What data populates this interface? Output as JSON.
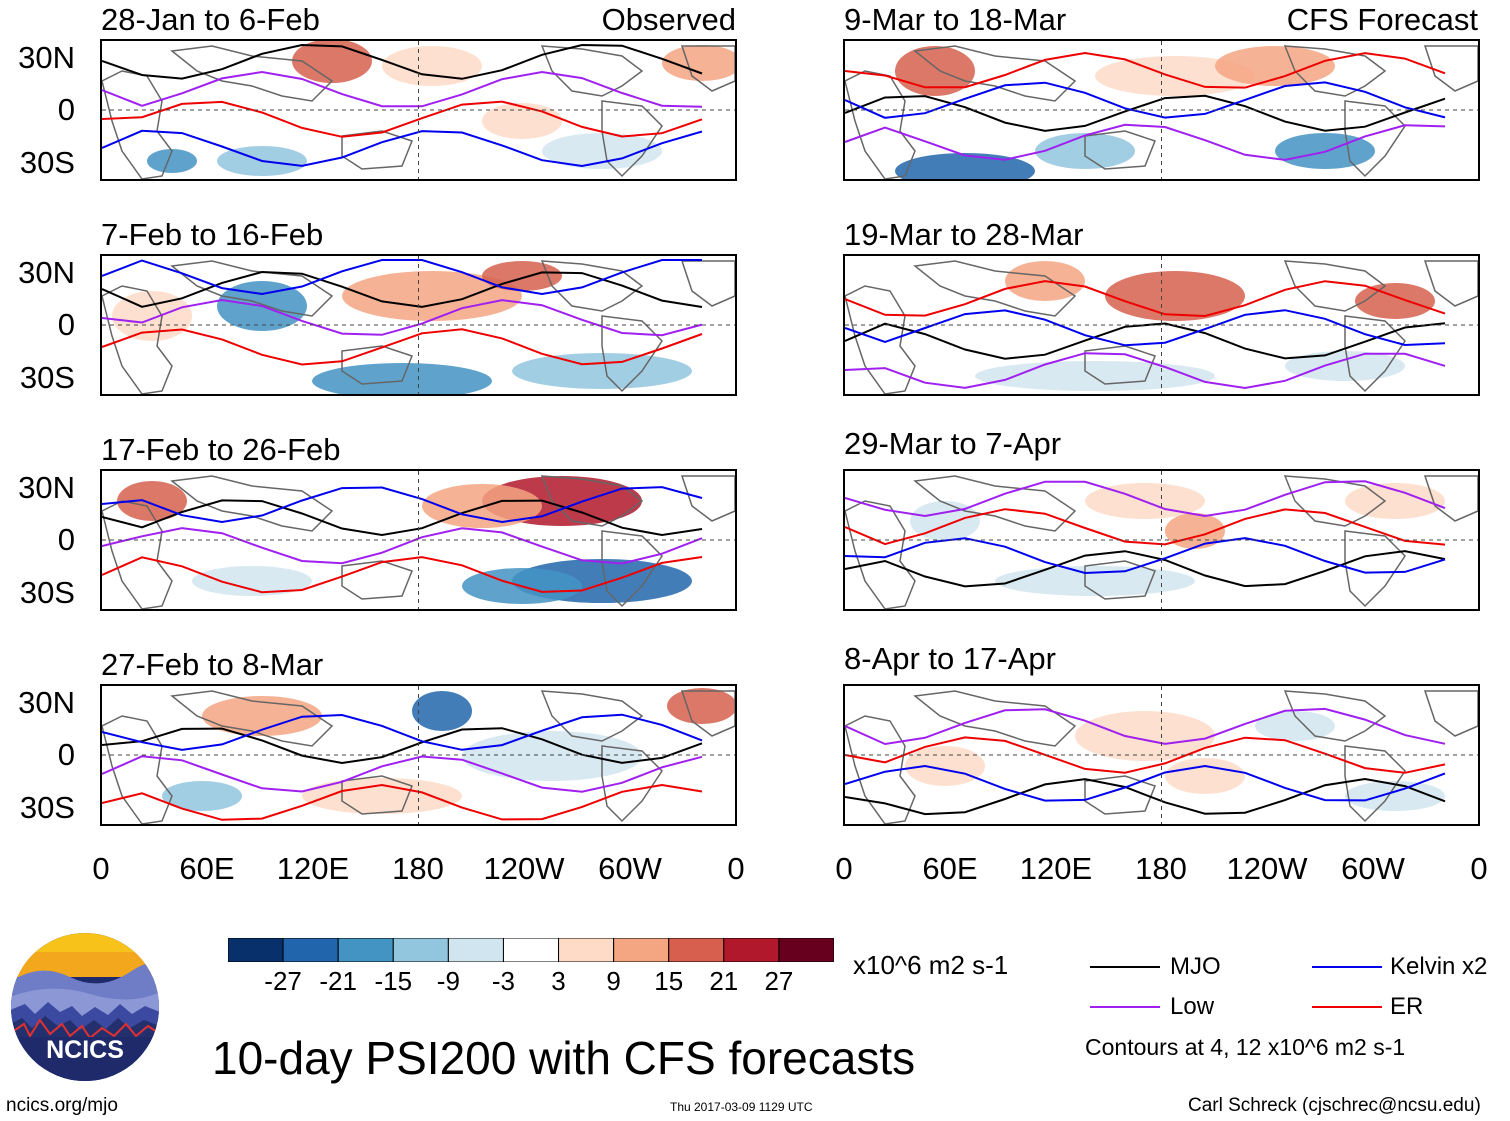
{
  "title": "10-day PSI200 with CFS forecasts",
  "left_column_label": "Observed",
  "right_column_label": "CFS Forecast",
  "panels_left": [
    {
      "period": "28-Jan to 6-Feb"
    },
    {
      "period": "7-Feb to 16-Feb"
    },
    {
      "period": "17-Feb to 26-Feb"
    },
    {
      "period": "27-Feb to 8-Mar"
    }
  ],
  "panels_right": [
    {
      "period": "9-Mar to 18-Mar"
    },
    {
      "period": "19-Mar to 28-Mar"
    },
    {
      "period": "29-Mar to 7-Apr"
    },
    {
      "period": "8-Apr to 17-Apr"
    }
  ],
  "lat_labels": [
    "30N",
    "0",
    "30S"
  ],
  "lon_labels": [
    "0",
    "60E",
    "120E",
    "180",
    "120W",
    "60W",
    "0"
  ],
  "colorbar": {
    "tick_labels": [
      "-27",
      "-21",
      "-15",
      "-9",
      "-3",
      "3",
      "9",
      "15",
      "21",
      "27"
    ],
    "colors": [
      "#08306b",
      "#2166ac",
      "#4393c3",
      "#92c5de",
      "#d1e5f0",
      "#ffffff",
      "#fddbc7",
      "#f4a582",
      "#d6604d",
      "#b2182b",
      "#67001f"
    ],
    "units": "x10^6 m2 s-1"
  },
  "legend": {
    "items": [
      {
        "label": "MJO",
        "color": "#000000"
      },
      {
        "label": "Kelvin x2",
        "color": "#0000ee"
      },
      {
        "label": "Low",
        "color": "#a020f0"
      },
      {
        "label": "ER",
        "color": "#ee0000"
      }
    ],
    "note": "Contours at 4, 12 x10^6 m2 s-1"
  },
  "logo": {
    "text": "NCICS"
  },
  "footer": {
    "url": "ncics.org/mjo",
    "timestamp": "Thu 2017-03-09 1129 UTC",
    "author": "Carl Schreck (cjschrec@ncsu.edu)"
  }
}
